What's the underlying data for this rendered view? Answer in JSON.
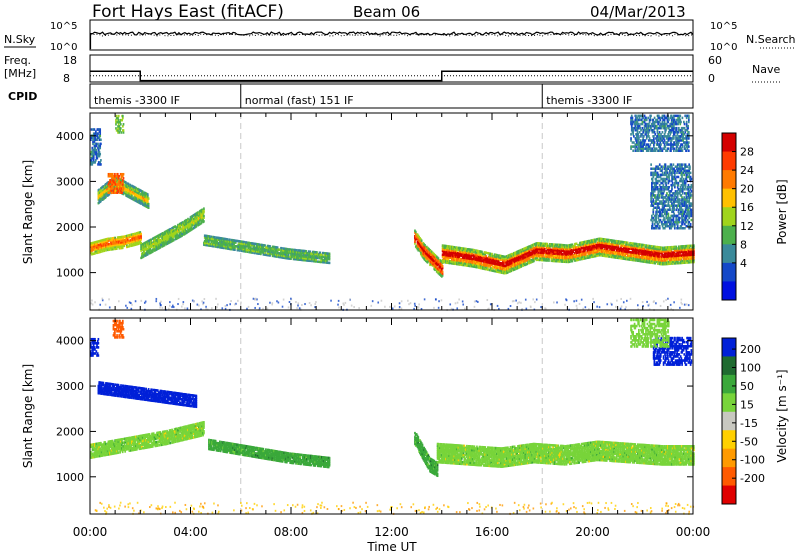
{
  "header": {
    "station": "Fort Hays East (fitACF)",
    "beam": "Beam 06",
    "date": "04/Mar/2013"
  },
  "top_panels": {
    "nsky_label": "N.Sky",
    "nsearch_label": "N.Search",
    "nsky_ticks": [
      "10^5",
      "10^0"
    ],
    "nsearch_ticks": [
      "10^5",
      "10^0"
    ],
    "freq_label_1": "Freq.",
    "freq_label_2": "[MHz]",
    "freq_ticks": [
      "18",
      "8"
    ],
    "nave_label": "Nave",
    "nave_ticks": [
      "60",
      "0"
    ],
    "cpid_label": "CPID",
    "cpid_segments": [
      {
        "label": "themis -3300 IF",
        "start_h": 0,
        "end_h": 6
      },
      {
        "label": "normal (fast) 151 IF",
        "start_h": 6,
        "end_h": 18
      },
      {
        "label": "themis -3300 IF",
        "start_h": 18,
        "end_h": 24
      }
    ],
    "freq_steps": [
      {
        "start_h": 0,
        "end_h": 2,
        "mhz": 12.0
      },
      {
        "start_h": 2,
        "end_h": 14,
        "mhz": 8.5
      },
      {
        "start_h": 14,
        "end_h": 24,
        "mhz": 12.0
      }
    ],
    "nave_level": 14
  },
  "chart_data": [
    {
      "type": "heatmap",
      "name": "power",
      "xlabel": "",
      "ylabel": "Slant Range [km]",
      "xlim": [
        0,
        24
      ],
      "ylim": [
        180,
        4500
      ],
      "yticks": [
        1000,
        2000,
        3000,
        4000
      ],
      "xticks_h": [
        0,
        4,
        8,
        12,
        16,
        20,
        24
      ],
      "vlines_h": [
        6,
        18
      ],
      "colorbar": {
        "label": "Power [dB]",
        "ticks": [
          "28",
          "24",
          "20",
          "16",
          "12",
          "8",
          "4"
        ],
        "scale": [
          "#d40000",
          "#ff3b00",
          "#ff7a00",
          "#ffc000",
          "#a0d41c",
          "#4cb04c",
          "#3a8a9a",
          "#1448c8",
          "#0010e0"
        ]
      },
      "bands": [
        {
          "t0": 0.0,
          "t1": 2.0,
          "r_center": [
            1550,
            1650,
            1700,
            1800
          ],
          "width": 250,
          "levels": [
            22,
            18,
            14
          ]
        },
        {
          "t0": 2.0,
          "t1": 4.5,
          "r_center": [
            1500,
            1750,
            2000,
            2300
          ],
          "width": 300,
          "levels": [
            14,
            12,
            10
          ]
        },
        {
          "t0": 4.5,
          "t1": 9.5,
          "r_center": [
            1750,
            1600,
            1450,
            1350
          ],
          "width": 220,
          "levels": [
            10,
            12,
            8
          ]
        },
        {
          "t0": 0.3,
          "t1": 2.3,
          "r_center": [
            2700,
            3000,
            2800,
            2600
          ],
          "width": 300,
          "levels": [
            18,
            12,
            8
          ]
        },
        {
          "t0": 12.9,
          "t1": 14.0,
          "r_center": [
            1800,
            1500,
            1300,
            1100
          ],
          "width": 350,
          "levels": [
            28,
            22,
            12
          ]
        },
        {
          "t0": 14.0,
          "t1": 24.0,
          "r_center": [
            1450,
            1350,
            1200,
            1500,
            1450,
            1600,
            1500,
            1400,
            1450
          ],
          "width": 380,
          "levels": [
            28,
            20,
            12
          ]
        }
      ],
      "patches": [
        {
          "t0": 0.7,
          "t1": 1.3,
          "r": 3000,
          "dr": 220,
          "level": 22
        },
        {
          "t0": 1.0,
          "t1": 1.3,
          "r": 4300,
          "dr": 200,
          "level": 12
        },
        {
          "t0": 0.0,
          "t1": 0.4,
          "r": 3800,
          "dr": 400,
          "level": 6
        },
        {
          "t0": 21.5,
          "t1": 23.8,
          "r": 4100,
          "dr": 400,
          "level": 6
        },
        {
          "t0": 22.3,
          "t1": 23.9,
          "r": 2700,
          "dr": 700,
          "level": 6
        }
      ]
    },
    {
      "type": "heatmap",
      "name": "velocity",
      "xlabel": "Time UT",
      "ylabel": "Slant Range [km]",
      "xlim": [
        0,
        24
      ],
      "ylim": [
        180,
        4500
      ],
      "yticks": [
        1000,
        2000,
        3000,
        4000
      ],
      "xtick_labels": [
        "00:00",
        "04:00",
        "08:00",
        "12:00",
        "16:00",
        "20:00",
        "00:00"
      ],
      "vlines_h": [
        6,
        18
      ],
      "colorbar": {
        "label": "Velocity [m s⁻¹]",
        "ticks": [
          "200",
          "100",
          "50",
          "15",
          "-15",
          "-50",
          "-100",
          "-200"
        ],
        "scale": [
          "#0020d8",
          "#1f6b30",
          "#3aa83a",
          "#78d43a",
          "#c8c8c0",
          "#ffd000",
          "#ff9a00",
          "#ff5a00",
          "#e00000"
        ]
      },
      "bands": [
        {
          "t0": 0.0,
          "t1": 4.5,
          "r_center": [
            1600,
            1750,
            1900,
            2100
          ],
          "width": 300,
          "velocity": 0
        },
        {
          "t0": 4.7,
          "t1": 9.5,
          "r_center": [
            1750,
            1600,
            1450,
            1350
          ],
          "width": 220,
          "velocity": 60
        },
        {
          "t0": 0.3,
          "t1": 4.2,
          "r_center": [
            3000,
            2900,
            2800,
            2700
          ],
          "width": 260,
          "velocity": 200
        },
        {
          "t0": 12.9,
          "t1": 13.8,
          "r_center": [
            1900,
            1600,
            1300,
            1200
          ],
          "width": 300,
          "velocity": 60
        },
        {
          "t0": 13.8,
          "t1": 24.0,
          "r_center": [
            1550,
            1500,
            1450,
            1550,
            1500,
            1600,
            1550,
            1500,
            1500
          ],
          "width": 400,
          "velocity": 0
        }
      ],
      "patches": [
        {
          "t0": 0.9,
          "t1": 1.3,
          "r": 4300,
          "dr": 200,
          "velocity": -200
        },
        {
          "t0": 0.0,
          "t1": 0.3,
          "r": 3900,
          "dr": 200,
          "velocity": 200
        },
        {
          "t0": 22.4,
          "t1": 23.9,
          "r": 3800,
          "dr": 300,
          "velocity": 200
        },
        {
          "t0": 21.5,
          "t1": 23.0,
          "r": 4200,
          "dr": 300,
          "velocity": 0
        }
      ]
    }
  ]
}
